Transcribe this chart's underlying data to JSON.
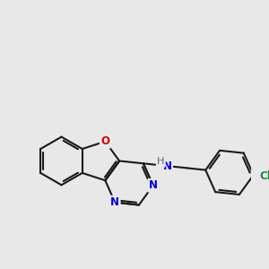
{
  "bg": "#e8e8e8",
  "bc": "#1a1a1a",
  "Nc": "#0000cc",
  "Oc": "#cc0000",
  "Clc": "#228844",
  "Hc": "#447777",
  "lw": 1.5,
  "lw2": 1.5,
  "figsize": [
    3.0,
    3.0
  ],
  "dpi": 100,
  "xlim": [
    0.0,
    8.5
  ],
  "ylim": [
    0.5,
    9.0
  ]
}
